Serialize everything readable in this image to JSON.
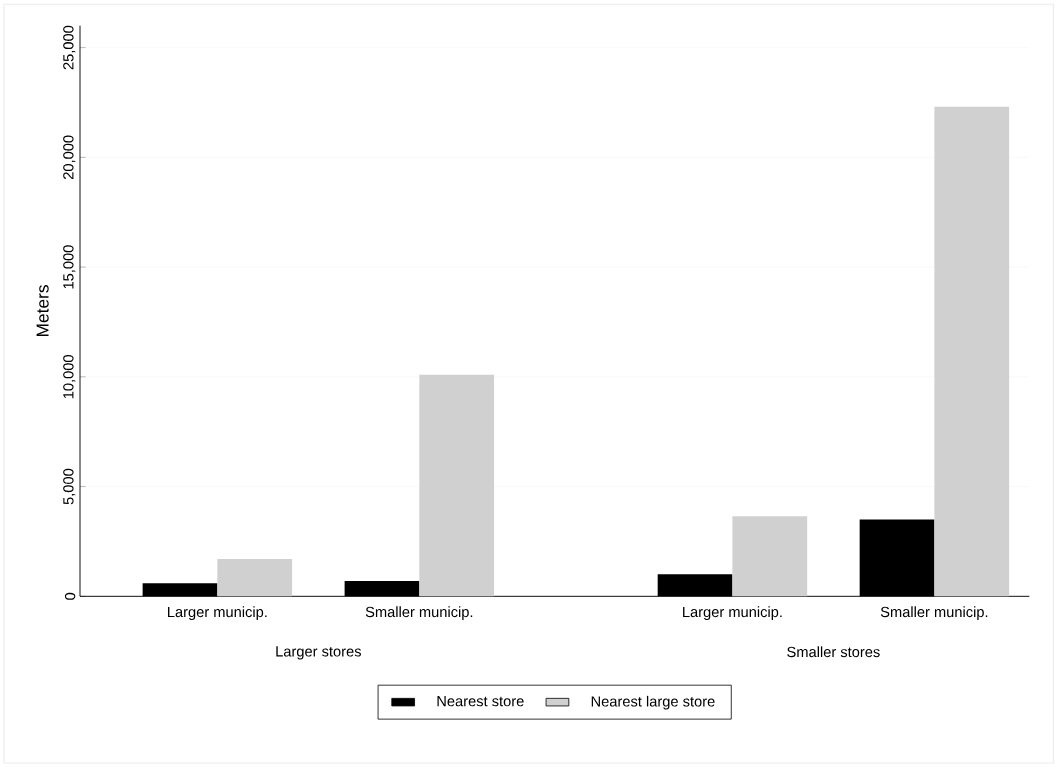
{
  "chart_data": {
    "type": "bar",
    "ylabel": "Meters",
    "categories": [
      "Larger municip.",
      "Smaller municip.",
      "Larger municip.",
      "Smaller municip."
    ],
    "annotations": [
      "Larger stores",
      "Smaller stores"
    ],
    "series": [
      {
        "name": "Nearest store",
        "color": "#000000",
        "values": [
          600,
          700,
          1000,
          3500
        ]
      },
      {
        "name": "Nearest large store",
        "color": "#d0d0d0",
        "values": [
          1700,
          10100,
          3650,
          22300
        ]
      }
    ],
    "ylim": [
      0,
      26000
    ],
    "yticks": [
      0,
      {
        "value": 5000,
        "label": "5,000"
      },
      {
        "value": 10000,
        "label": "10,000"
      },
      {
        "value": 15000,
        "label": "15,000"
      },
      {
        "value": 20000,
        "label": "20,000"
      },
      {
        "value": 25000,
        "label": "25,000"
      }
    ],
    "grid": "y",
    "legend": "bottom"
  }
}
